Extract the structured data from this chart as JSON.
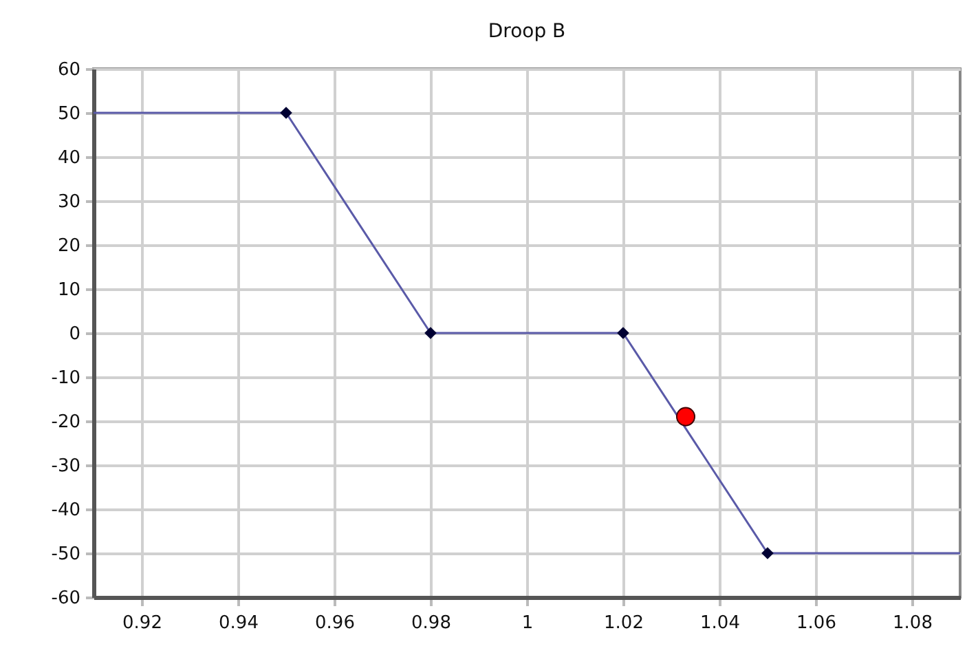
{
  "chart_data": {
    "type": "line",
    "title": "Droop B",
    "xlim": [
      0.91,
      1.09
    ],
    "xticks": [
      0.92,
      0.94,
      0.96,
      0.98,
      1,
      1.02,
      1.04,
      1.06,
      1.08
    ],
    "ylim": [
      -60,
      60
    ],
    "yticks": [
      -60,
      -50,
      -40,
      -30,
      -20,
      -10,
      0,
      10,
      20,
      30,
      40,
      50,
      60
    ],
    "grid": true,
    "series": [
      {
        "type": "line",
        "marker": "none",
        "color": "#5a5aa8",
        "x": [
          0.91,
          0.95,
          0.98,
          1.02,
          1.05,
          1.09
        ],
        "values": [
          50,
          50,
          0,
          0,
          -50,
          -50
        ]
      },
      {
        "type": "scatter",
        "marker": "diamond",
        "color": "#000033",
        "x": [
          0.95,
          0.98,
          1.02,
          1.05
        ],
        "values": [
          50,
          0,
          0,
          -50
        ]
      },
      {
        "type": "scatter",
        "marker": "circle",
        "color": "#ff0000",
        "x": [
          1.033
        ],
        "values": [
          -19
        ]
      }
    ]
  }
}
